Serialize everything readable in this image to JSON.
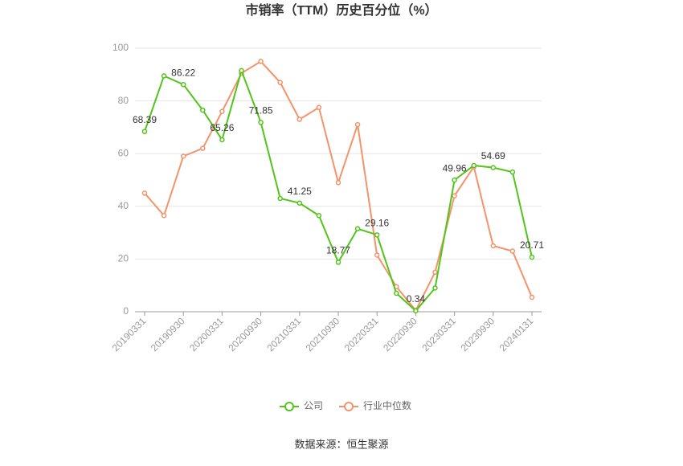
{
  "chart_data": {
    "type": "line",
    "title": "市销率（TTM）历史百分位（%）",
    "categories": [
      "20190331",
      null,
      "20190930",
      null,
      "20200331",
      null,
      "20200930",
      null,
      "20210331",
      null,
      "20210930",
      null,
      "20220331",
      null,
      "20220930",
      null,
      "20230331",
      null,
      "20230930",
      null,
      "20240131"
    ],
    "series": [
      {
        "name": "公司",
        "color": "#52c41a",
        "values": [
          68.39,
          89.5,
          86.22,
          76.5,
          65.26,
          91.5,
          71.85,
          43,
          41.25,
          36.5,
          18.77,
          31.5,
          29.16,
          7,
          0.34,
          9,
          49.96,
          55.5,
          54.69,
          53,
          20.71
        ]
      },
      {
        "name": "行业中位数",
        "color": "#f4936b",
        "values": [
          45,
          36.5,
          59,
          62,
          76,
          90.5,
          95,
          87,
          73,
          77.5,
          49,
          71,
          21.5,
          9.5,
          0.5,
          15,
          44,
          55,
          25,
          23,
          5.5
        ]
      }
    ],
    "ylim": [
      0,
      100
    ],
    "yticks": [
      0,
      20,
      40,
      60,
      80,
      100
    ],
    "grid": true,
    "source": "数据来源：恒生聚源"
  }
}
